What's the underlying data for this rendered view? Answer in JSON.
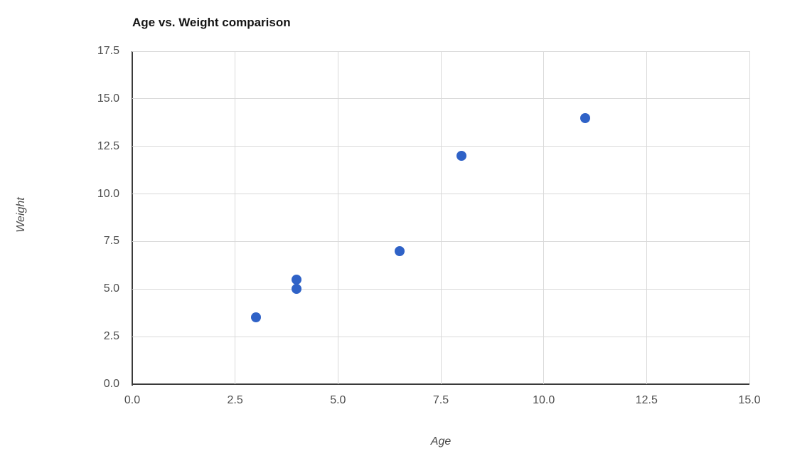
{
  "chart_data": {
    "type": "scatter",
    "title": "Age vs. Weight comparison",
    "xlabel": "Age",
    "ylabel": "Weight",
    "xlim": [
      0,
      15
    ],
    "ylim": [
      0,
      17.5
    ],
    "x_ticks": [
      "0.0",
      "2.5",
      "5.0",
      "7.5",
      "10.0",
      "12.5",
      "15.0"
    ],
    "y_ticks": [
      "0.0",
      "2.5",
      "5.0",
      "7.5",
      "10.0",
      "12.5",
      "15.0",
      "17.5"
    ],
    "grid": true,
    "legend": false,
    "points": [
      {
        "x": 3,
        "y": 3.5
      },
      {
        "x": 4,
        "y": 5
      },
      {
        "x": 4,
        "y": 5.5
      },
      {
        "x": 6.5,
        "y": 7
      },
      {
        "x": 8,
        "y": 12
      },
      {
        "x": 11,
        "y": 14
      }
    ],
    "point_color": "#2f62c7",
    "grid_color": "#d9d9d9",
    "axis_color": "#3a3a3a",
    "tick_text_color": "#4d4d4d",
    "title_color": "#141414"
  }
}
